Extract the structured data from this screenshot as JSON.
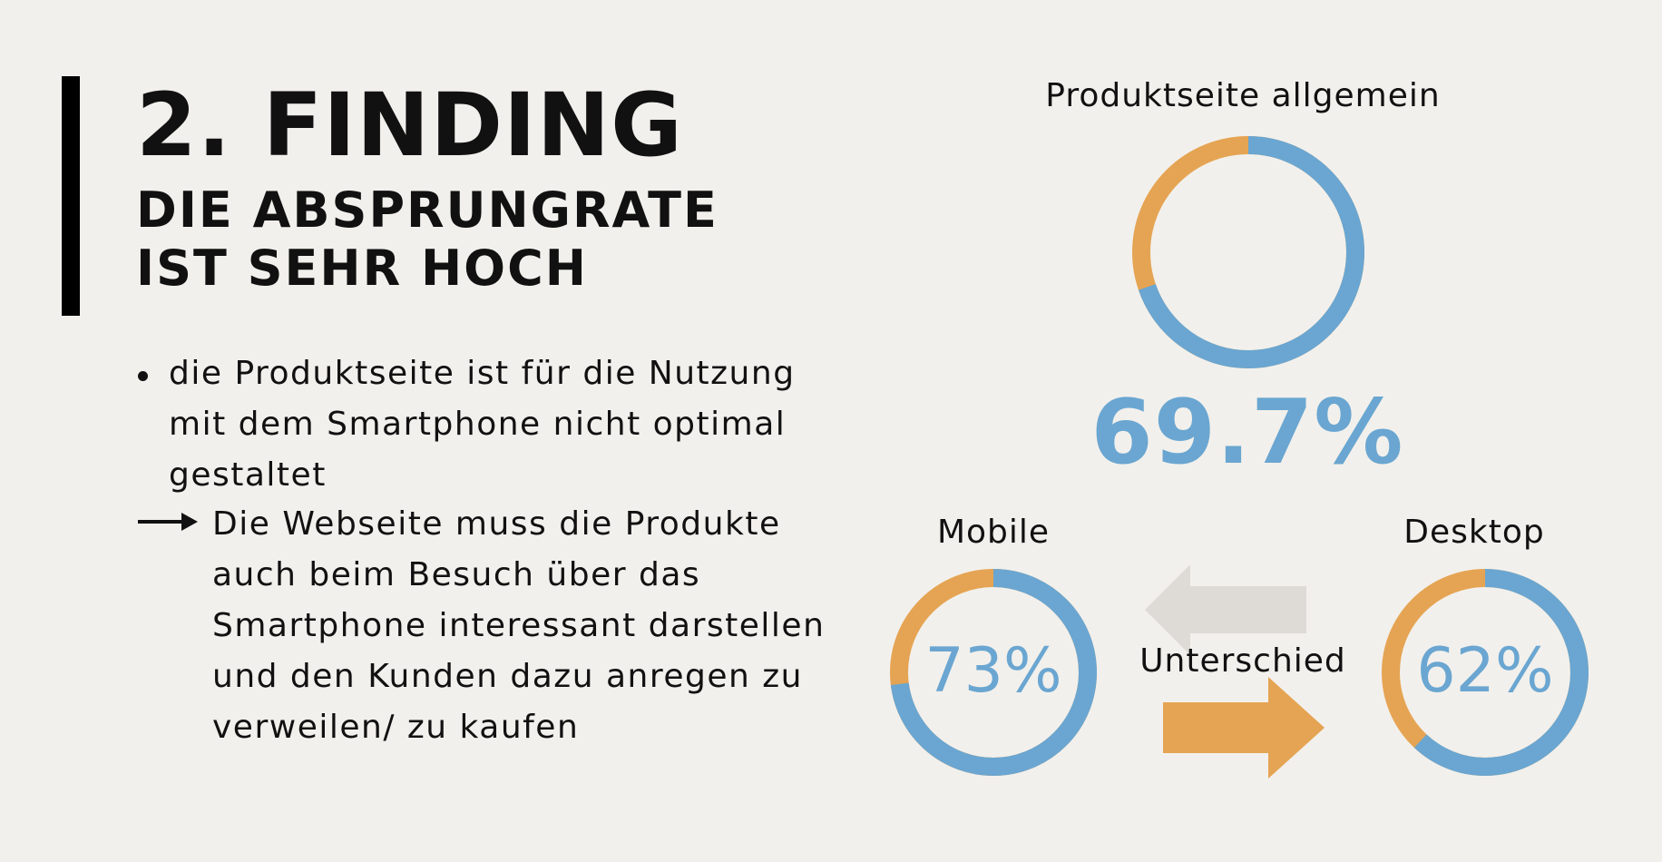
{
  "title": {
    "heading": "2. FINDING",
    "subheading": "DIE ABSPRUNGRATE IST SEHR HOCH"
  },
  "body": {
    "bullet": "die Produktseite ist für die Nutzung mit dem Smartphone nicht optimal gestaltet",
    "arrow_text": "Die Webseite muss die Produkte auch beim Besuch über das Smartphone interessant darstellen und den Kunden dazu anregen zu verweilen/ zu kaufen"
  },
  "colors": {
    "blue": "#6aa6d1",
    "orange": "#e5a453",
    "arrow_gray": "#dedbd7",
    "text": "#111111",
    "background": "#f2f0ec"
  },
  "icons": {
    "bullet": "bullet-dot-icon",
    "arrow": "right-arrow-icon"
  },
  "charts": {
    "overall": {
      "label": "Produktseite allgemein",
      "value_text": "69.7%",
      "value": 69.7
    },
    "mobile": {
      "label": "Mobile",
      "value_text": "73%",
      "value": 73
    },
    "desktop": {
      "label": "Desktop",
      "value_text": "62%",
      "value": 62
    },
    "difference_label": "Unterschied"
  }
}
